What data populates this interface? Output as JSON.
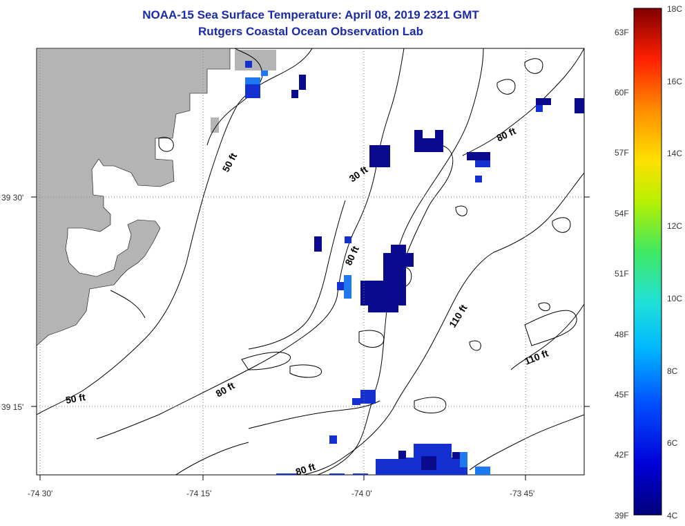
{
  "title": {
    "line1": "NOAA-15 Sea Surface Temperature:  April 08, 2019 2321 GMT",
    "line2": "Rutgers Coastal Ocean Observation Lab"
  },
  "x_axis": {
    "ticks": [
      "-74 30'",
      "-74 15'",
      "-74 0'",
      "-73 45'"
    ]
  },
  "y_axis": {
    "ticks": [
      "39 30'",
      "39 15'"
    ]
  },
  "isobaths": [
    "50 ft",
    "50 ft",
    "30 ft",
    "80 ft",
    "80 ft",
    "80 ft",
    "80 ft",
    "110 ft",
    "110 ft"
  ],
  "colorbar": {
    "fahrenheit": [
      "63F",
      "60F",
      "57F",
      "54F",
      "51F",
      "48F",
      "45F",
      "42F",
      "39F"
    ],
    "celsius": [
      "18C",
      "16C",
      "14C",
      "12C",
      "10C",
      "8C",
      "6C",
      "4C"
    ]
  },
  "colors": {
    "title": "#1a2aa8",
    "land": "#b4b4b4",
    "sst_dark": "#0a0a8c",
    "sst_mid": "#1530d0",
    "sst_light": "#1e78f0"
  }
}
